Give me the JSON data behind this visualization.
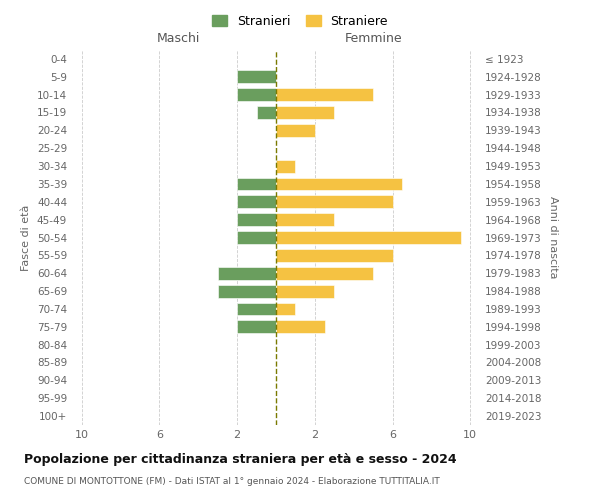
{
  "age_groups": [
    "0-4",
    "5-9",
    "10-14",
    "15-19",
    "20-24",
    "25-29",
    "30-34",
    "35-39",
    "40-44",
    "45-49",
    "50-54",
    "55-59",
    "60-64",
    "65-69",
    "70-74",
    "75-79",
    "80-84",
    "85-89",
    "90-94",
    "95-99",
    "100+"
  ],
  "birth_years": [
    "2019-2023",
    "2014-2018",
    "2009-2013",
    "2004-2008",
    "1999-2003",
    "1994-1998",
    "1989-1993",
    "1984-1988",
    "1979-1983",
    "1974-1978",
    "1969-1973",
    "1964-1968",
    "1959-1963",
    "1954-1958",
    "1949-1953",
    "1944-1948",
    "1939-1943",
    "1934-1938",
    "1929-1933",
    "1924-1928",
    "≤ 1923"
  ],
  "males": [
    0,
    2,
    2,
    1,
    0,
    0,
    0,
    2,
    2,
    2,
    2,
    0,
    3,
    3,
    2,
    2,
    0,
    0,
    0,
    0,
    0
  ],
  "females": [
    0,
    0,
    5,
    3,
    2,
    0,
    1,
    6.5,
    6,
    3,
    9.5,
    6,
    5,
    3,
    1,
    2.5,
    0,
    0,
    0,
    0,
    0
  ],
  "male_color": "#6a9e5e",
  "female_color": "#f5c242",
  "dashed_line_color": "#7a7a00",
  "background_color": "#ffffff",
  "grid_color": "#cccccc",
  "title": "Popolazione per cittadinanza straniera per età e sesso - 2024",
  "subtitle": "COMUNE DI MONTOTTONE (FM) - Dati ISTAT al 1° gennaio 2024 - Elaborazione TUTTITALIA.IT",
  "xlabel_left": "Maschi",
  "xlabel_right": "Femmine",
  "ylabel_left": "Fasce di età",
  "ylabel_right": "Anni di nascita",
  "legend_male": "Stranieri",
  "legend_female": "Straniere"
}
